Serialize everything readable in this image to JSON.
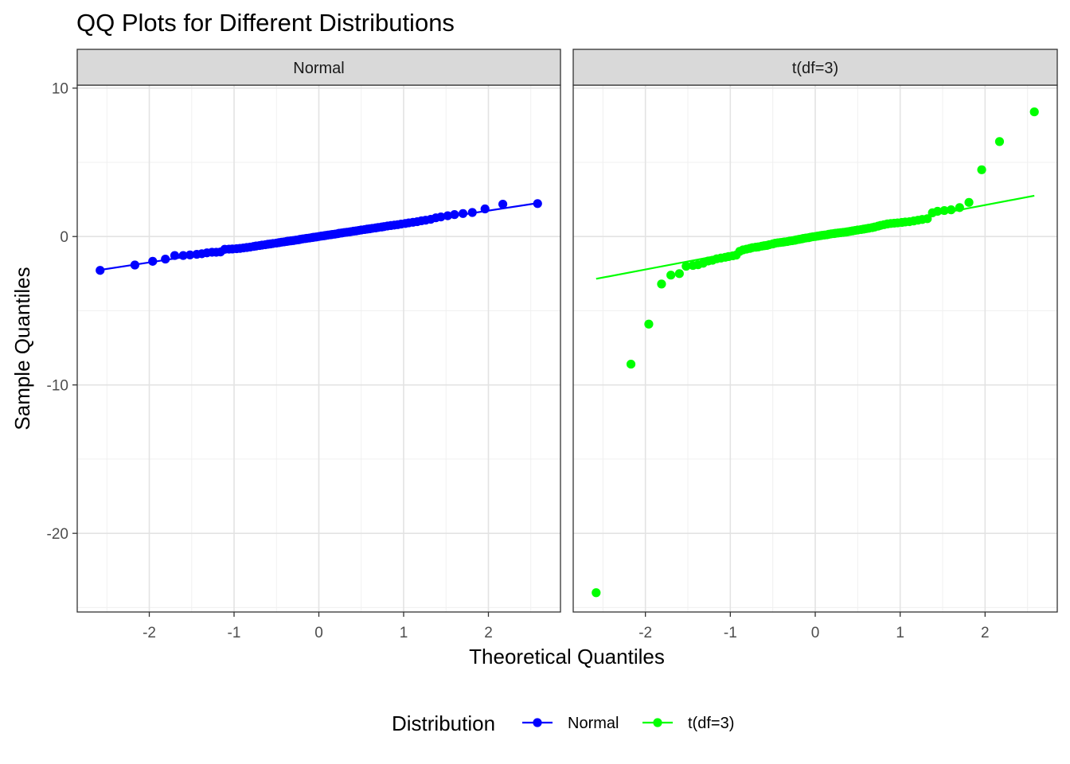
{
  "chart_data": {
    "type": "scatter",
    "title": "QQ Plots for Different Distributions",
    "xlabel": "Theoretical Quantiles",
    "ylabel": "Sample Quantiles",
    "xlim": [
      -2.85,
      2.85
    ],
    "ylim": [
      -25.3,
      10.2
    ],
    "x_ticks": [
      -2,
      -1,
      0,
      1,
      2
    ],
    "x_tick_labels": [
      "-2",
      "-1",
      "0",
      "1",
      "2"
    ],
    "y_ticks": [
      -20,
      -10,
      0,
      10
    ],
    "y_tick_labels": [
      "-20",
      "-10",
      "0",
      "10"
    ],
    "grid": true,
    "legend": {
      "title": "Distribution",
      "position": "bottom",
      "entries": [
        "Normal",
        "t(df=3)"
      ]
    },
    "panels": [
      {
        "name": "Normal",
        "color": "#0000ff",
        "line": {
          "x": [
            -2.58,
            2.58
          ],
          "y": [
            -2.25,
            2.25
          ]
        },
        "points": [
          [
            -2.58,
            -2.28
          ],
          [
            -2.17,
            -1.92
          ],
          [
            -1.96,
            -1.67
          ],
          [
            -1.81,
            -1.52
          ],
          [
            -1.7,
            -1.28
          ],
          [
            -1.6,
            -1.28
          ],
          [
            -1.52,
            -1.24
          ],
          [
            -1.44,
            -1.2
          ],
          [
            -1.38,
            -1.16
          ],
          [
            -1.32,
            -1.1
          ],
          [
            -1.26,
            -1.06
          ],
          [
            -1.21,
            -1.06
          ],
          [
            -1.16,
            -1.04
          ],
          [
            -1.11,
            -0.86
          ],
          [
            -1.06,
            -0.85
          ],
          [
            -1.02,
            -0.84
          ],
          [
            -0.97,
            -0.82
          ],
          [
            -0.93,
            -0.8
          ],
          [
            -0.89,
            -0.77
          ],
          [
            -0.85,
            -0.74
          ],
          [
            -0.81,
            -0.71
          ],
          [
            -0.77,
            -0.67
          ],
          [
            -0.74,
            -0.64
          ],
          [
            -0.7,
            -0.61
          ],
          [
            -0.67,
            -0.58
          ],
          [
            -0.63,
            -0.55
          ],
          [
            -0.6,
            -0.52
          ],
          [
            -0.57,
            -0.5
          ],
          [
            -0.54,
            -0.47
          ],
          [
            -0.5,
            -0.44
          ],
          [
            -0.47,
            -0.41
          ],
          [
            -0.44,
            -0.38
          ],
          [
            -0.41,
            -0.36
          ],
          [
            -0.38,
            -0.33
          ],
          [
            -0.36,
            -0.31
          ],
          [
            -0.33,
            -0.29
          ],
          [
            -0.3,
            -0.27
          ],
          [
            -0.27,
            -0.24
          ],
          [
            -0.24,
            -0.22
          ],
          [
            -0.22,
            -0.19
          ],
          [
            -0.19,
            -0.16
          ],
          [
            -0.16,
            -0.14
          ],
          [
            -0.14,
            -0.12
          ],
          [
            -0.11,
            -0.1
          ],
          [
            -0.08,
            -0.07
          ],
          [
            -0.06,
            -0.05
          ],
          [
            -0.03,
            -0.03
          ],
          [
            0.0,
            0.0
          ],
          [
            0.03,
            0.03
          ],
          [
            0.06,
            0.05
          ],
          [
            0.08,
            0.07
          ],
          [
            0.11,
            0.1
          ],
          [
            0.14,
            0.12
          ],
          [
            0.16,
            0.14
          ],
          [
            0.19,
            0.16
          ],
          [
            0.22,
            0.19
          ],
          [
            0.24,
            0.22
          ],
          [
            0.27,
            0.24
          ],
          [
            0.3,
            0.27
          ],
          [
            0.33,
            0.29
          ],
          [
            0.36,
            0.31
          ],
          [
            0.38,
            0.33
          ],
          [
            0.41,
            0.36
          ],
          [
            0.44,
            0.38
          ],
          [
            0.47,
            0.41
          ],
          [
            0.5,
            0.44
          ],
          [
            0.54,
            0.47
          ],
          [
            0.57,
            0.5
          ],
          [
            0.6,
            0.52
          ],
          [
            0.63,
            0.55
          ],
          [
            0.67,
            0.58
          ],
          [
            0.7,
            0.61
          ],
          [
            0.74,
            0.64
          ],
          [
            0.77,
            0.67
          ],
          [
            0.81,
            0.71
          ],
          [
            0.85,
            0.74
          ],
          [
            0.89,
            0.77
          ],
          [
            0.93,
            0.8
          ],
          [
            0.97,
            0.84
          ],
          [
            1.02,
            0.88
          ],
          [
            1.06,
            0.92
          ],
          [
            1.11,
            0.96
          ],
          [
            1.16,
            1.0
          ],
          [
            1.21,
            1.06
          ],
          [
            1.26,
            1.1
          ],
          [
            1.32,
            1.16
          ],
          [
            1.38,
            1.26
          ],
          [
            1.44,
            1.32
          ],
          [
            1.52,
            1.4
          ],
          [
            1.6,
            1.48
          ],
          [
            1.7,
            1.55
          ],
          [
            1.81,
            1.62
          ],
          [
            1.96,
            1.86
          ],
          [
            2.17,
            2.18
          ],
          [
            2.58,
            2.22
          ]
        ]
      },
      {
        "name": "t(df=3)",
        "color": "#00ff00",
        "line": {
          "x": [
            -2.58,
            2.58
          ],
          "y": [
            -2.85,
            2.75
          ]
        },
        "points": [
          [
            -2.58,
            -24.0
          ],
          [
            -2.17,
            -8.6
          ],
          [
            -1.96,
            -5.9
          ],
          [
            -1.81,
            -3.2
          ],
          [
            -1.7,
            -2.6
          ],
          [
            -1.6,
            -2.5
          ],
          [
            -1.52,
            -2.0
          ],
          [
            -1.44,
            -1.95
          ],
          [
            -1.38,
            -1.9
          ],
          [
            -1.32,
            -1.8
          ],
          [
            -1.26,
            -1.65
          ],
          [
            -1.21,
            -1.6
          ],
          [
            -1.16,
            -1.5
          ],
          [
            -1.11,
            -1.45
          ],
          [
            -1.06,
            -1.4
          ],
          [
            -1.02,
            -1.35
          ],
          [
            -0.97,
            -1.3
          ],
          [
            -0.93,
            -1.25
          ],
          [
            -0.89,
            -1.0
          ],
          [
            -0.85,
            -0.9
          ],
          [
            -0.81,
            -0.85
          ],
          [
            -0.77,
            -0.8
          ],
          [
            -0.74,
            -0.75
          ],
          [
            -0.7,
            -0.72
          ],
          [
            -0.67,
            -0.7
          ],
          [
            -0.63,
            -0.65
          ],
          [
            -0.6,
            -0.62
          ],
          [
            -0.57,
            -0.6
          ],
          [
            -0.54,
            -0.55
          ],
          [
            -0.5,
            -0.5
          ],
          [
            -0.47,
            -0.45
          ],
          [
            -0.44,
            -0.42
          ],
          [
            -0.41,
            -0.4
          ],
          [
            -0.38,
            -0.38
          ],
          [
            -0.36,
            -0.36
          ],
          [
            -0.33,
            -0.34
          ],
          [
            -0.3,
            -0.3
          ],
          [
            -0.27,
            -0.28
          ],
          [
            -0.24,
            -0.25
          ],
          [
            -0.22,
            -0.22
          ],
          [
            -0.19,
            -0.19
          ],
          [
            -0.16,
            -0.16
          ],
          [
            -0.14,
            -0.13
          ],
          [
            -0.11,
            -0.1
          ],
          [
            -0.08,
            -0.08
          ],
          [
            -0.06,
            -0.05
          ],
          [
            -0.03,
            -0.02
          ],
          [
            0.0,
            0.0
          ],
          [
            0.03,
            0.03
          ],
          [
            0.06,
            0.06
          ],
          [
            0.08,
            0.08
          ],
          [
            0.11,
            0.1
          ],
          [
            0.14,
            0.12
          ],
          [
            0.16,
            0.15
          ],
          [
            0.19,
            0.18
          ],
          [
            0.22,
            0.2
          ],
          [
            0.24,
            0.22
          ],
          [
            0.27,
            0.24
          ],
          [
            0.3,
            0.26
          ],
          [
            0.33,
            0.28
          ],
          [
            0.36,
            0.3
          ],
          [
            0.38,
            0.32
          ],
          [
            0.41,
            0.35
          ],
          [
            0.44,
            0.38
          ],
          [
            0.47,
            0.41
          ],
          [
            0.5,
            0.44
          ],
          [
            0.54,
            0.47
          ],
          [
            0.57,
            0.5
          ],
          [
            0.6,
            0.53
          ],
          [
            0.63,
            0.56
          ],
          [
            0.67,
            0.6
          ],
          [
            0.7,
            0.64
          ],
          [
            0.74,
            0.7
          ],
          [
            0.77,
            0.75
          ],
          [
            0.81,
            0.8
          ],
          [
            0.85,
            0.85
          ],
          [
            0.89,
            0.88
          ],
          [
            0.93,
            0.9
          ],
          [
            0.97,
            0.92
          ],
          [
            1.02,
            0.95
          ],
          [
            1.06,
            0.98
          ],
          [
            1.11,
            1.0
          ],
          [
            1.16,
            1.05
          ],
          [
            1.21,
            1.1
          ],
          [
            1.26,
            1.15
          ],
          [
            1.32,
            1.2
          ],
          [
            1.38,
            1.6
          ],
          [
            1.44,
            1.7
          ],
          [
            1.52,
            1.75
          ],
          [
            1.6,
            1.8
          ],
          [
            1.7,
            1.95
          ],
          [
            1.81,
            2.3
          ],
          [
            1.96,
            4.5
          ],
          [
            2.17,
            6.4
          ],
          [
            2.58,
            8.4
          ]
        ]
      }
    ]
  }
}
